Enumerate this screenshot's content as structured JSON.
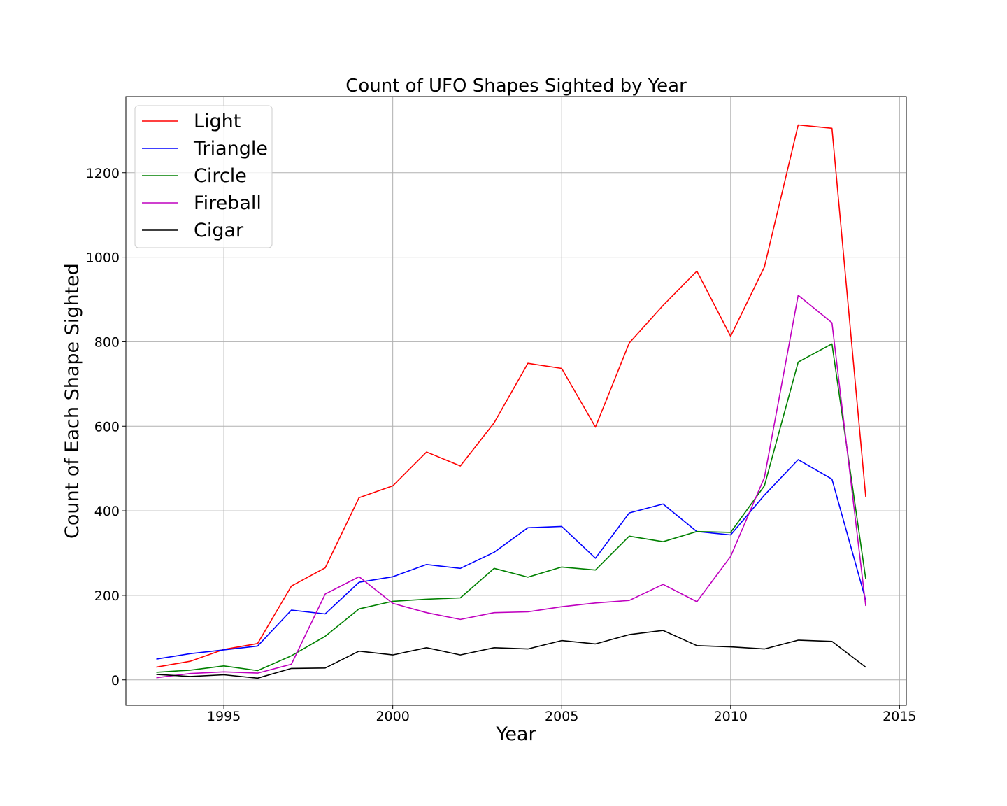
{
  "chart_data": {
    "type": "line",
    "title": "Count of UFO Shapes Sighted by Year",
    "xlabel": "Year",
    "ylabel": "Count of Each Shape Sighted",
    "xlim": [
      1992.1,
      2015.2
    ],
    "ylim": [
      -60,
      1380
    ],
    "x_ticks": [
      1995,
      2000,
      2005,
      2010,
      2015
    ],
    "y_ticks": [
      0,
      200,
      400,
      600,
      800,
      1000,
      1200
    ],
    "grid": true,
    "legend_position": "top-left",
    "x": [
      1993,
      1994,
      1995,
      1996,
      1997,
      1998,
      1999,
      2000,
      2001,
      2002,
      2003,
      2004,
      2005,
      2006,
      2007,
      2008,
      2009,
      2010,
      2011,
      2012,
      2013,
      2014
    ],
    "series": [
      {
        "name": "Light",
        "color": "#ff0000",
        "values": [
          30,
          44,
          72,
          86,
          222,
          265,
          431,
          459,
          539,
          506,
          608,
          749,
          737,
          598,
          797,
          886,
          967,
          813,
          977,
          1313,
          1305,
          433
        ]
      },
      {
        "name": "Triangle",
        "color": "#0000ff",
        "values": [
          49,
          62,
          71,
          80,
          165,
          156,
          231,
          244,
          273,
          264,
          302,
          360,
          363,
          288,
          395,
          416,
          351,
          343,
          437,
          521,
          475,
          189
        ]
      },
      {
        "name": "Circle",
        "color": "#008000",
        "values": [
          18,
          23,
          33,
          22,
          57,
          103,
          168,
          186,
          191,
          194,
          264,
          243,
          267,
          260,
          340,
          327,
          351,
          349,
          459,
          752,
          795,
          239
        ]
      },
      {
        "name": "Fireball",
        "color": "#bf00bf",
        "values": [
          5,
          15,
          19,
          16,
          37,
          203,
          244,
          181,
          159,
          143,
          159,
          161,
          173,
          182,
          188,
          226,
          185,
          292,
          479,
          910,
          845,
          175
        ]
      },
      {
        "name": "Cigar",
        "color": "#000000",
        "values": [
          13,
          8,
          12,
          4,
          27,
          28,
          68,
          59,
          76,
          59,
          76,
          73,
          93,
          85,
          107,
          117,
          81,
          78,
          73,
          94,
          91,
          30
        ]
      }
    ]
  }
}
